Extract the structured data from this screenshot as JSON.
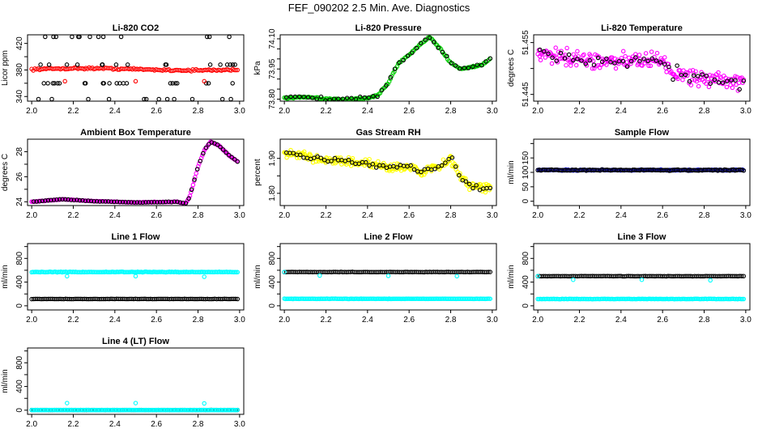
{
  "figure": {
    "title": "FEF_090202  2.5 Min. Ave. Diagnostics"
  },
  "chart_data": [
    {
      "type": "scatter",
      "title": "Li-820 CO2",
      "ylabel": "Licor ppm",
      "xlim": [
        1.98,
        3.02
      ],
      "ylim": [
        333,
        433
      ],
      "x_ticks": [
        "2.0",
        "2.2",
        "2.4",
        "2.6",
        "2.8",
        "3.0"
      ],
      "y_ticks": [
        340,
        360,
        380,
        400,
        420
      ],
      "y_tick_labels": [
        "340",
        "",
        "380",
        "",
        "420"
      ],
      "series": [
        {
          "name": "CO2 (red)",
          "color": "#ff0000",
          "pattern": "band",
          "x0": 2.0,
          "x1": 2.99,
          "level": 381,
          "drift": 1.5,
          "noise": 2,
          "count": 130
        },
        {
          "name": "CO2 discrete levels (black)",
          "color": "#000000",
          "pattern": "levels",
          "x0": 2.03,
          "x1": 2.99,
          "levels": [
            336,
            360,
            388,
            430
          ],
          "count": 64
        },
        {
          "name": "CO2 low outliers (red)",
          "color": "#ff0000",
          "pattern": "points",
          "x": [
            2.16,
            2.5,
            2.83
          ],
          "y": [
            363,
            363,
            363
          ]
        }
      ]
    },
    {
      "type": "scatter",
      "title": "Li-820 Pressure",
      "ylabel": "kPa",
      "xlim": [
        1.98,
        3.02
      ],
      "ylim": [
        73.79,
        74.12
      ],
      "x_ticks": [
        "2.0",
        "2.2",
        "2.4",
        "2.6",
        "2.8",
        "3.0"
      ],
      "y_ticks": [
        73.8,
        73.95,
        74.1
      ],
      "y_tick_labels": [
        "73.80",
        "73.95",
        "74.10"
      ],
      "y_minor_ticks": [
        73.85,
        73.9,
        74.0,
        74.05
      ],
      "series": [
        {
          "name": "Pressure (green)",
          "color": "#00cc00",
          "pattern": "curve",
          "x0": 2.0,
          "x1": 2.99,
          "noise": 0.006,
          "count": 160,
          "kx": [
            2.0,
            2.1,
            2.2,
            2.3,
            2.4,
            2.45,
            2.5,
            2.55,
            2.6,
            2.65,
            2.7,
            2.75,
            2.8,
            2.85,
            2.9,
            2.95,
            3.0
          ],
          "ky": [
            73.805,
            73.81,
            73.8,
            73.8,
            73.805,
            73.82,
            73.88,
            73.98,
            74.02,
            74.07,
            74.11,
            74.05,
            73.98,
            73.95,
            73.96,
            73.97,
            74.01
          ]
        },
        {
          "name": "Pressure (black)",
          "color": "#000000",
          "pattern": "curve",
          "x0": 2.01,
          "x1": 2.99,
          "noise": 0.01,
          "count": 48,
          "kx": [
            2.0,
            2.1,
            2.2,
            2.3,
            2.4,
            2.45,
            2.5,
            2.55,
            2.6,
            2.65,
            2.7,
            2.75,
            2.8,
            2.85,
            2.9,
            2.95,
            3.0
          ],
          "ky": [
            73.805,
            73.81,
            73.8,
            73.8,
            73.805,
            73.82,
            73.88,
            73.98,
            74.02,
            74.07,
            74.11,
            74.05,
            73.98,
            73.95,
            73.96,
            73.97,
            74.01
          ]
        }
      ]
    },
    {
      "type": "scatter",
      "title": "Li-820 Temperature",
      "ylabel": "degrees C",
      "xlim": [
        1.98,
        3.02
      ],
      "ylim": [
        51.4437,
        51.4565
      ],
      "x_ticks": [
        "2.0",
        "2.2",
        "2.4",
        "2.6",
        "2.8",
        "3.0"
      ],
      "y_ticks": [
        51.445,
        51.45,
        51.455
      ],
      "y_tick_labels": [
        "51.445",
        "",
        "51.455"
      ],
      "series": [
        {
          "name": "Temperature (magenta)",
          "color": "#ff00ff",
          "pattern": "curve",
          "x0": 2.0,
          "x1": 2.99,
          "noise": 0.0022,
          "count": 220,
          "kx": [
            2.0,
            2.3,
            2.6,
            2.65,
            3.0
          ],
          "ky": [
            51.4525,
            51.4515,
            51.4515,
            51.449,
            51.447
          ]
        },
        {
          "name": "Temperature (black)",
          "color": "#000000",
          "pattern": "curve",
          "x0": 2.01,
          "x1": 2.99,
          "noise": 0.0018,
          "count": 50,
          "kx": [
            2.0,
            2.3,
            2.6,
            2.65,
            3.0
          ],
          "ky": [
            51.4525,
            51.4515,
            51.4515,
            51.449,
            51.447
          ]
        }
      ]
    },
    {
      "type": "scatter",
      "title": "Ambient Box Temperature",
      "ylabel": "degrees C",
      "xlim": [
        1.98,
        3.02
      ],
      "ylim": [
        23.7,
        29.0
      ],
      "x_ticks": [
        "2.0",
        "2.2",
        "2.4",
        "2.6",
        "2.8",
        "3.0"
      ],
      "y_ticks": [
        24,
        26,
        28
      ],
      "y_tick_labels": [
        "24",
        "26",
        "28"
      ],
      "y_minor_ticks": [
        25,
        27
      ],
      "series": [
        {
          "name": "Box temp (magenta)",
          "color": "#ff00ff",
          "pattern": "curve",
          "x0": 2.0,
          "x1": 2.99,
          "noise": 0.03,
          "count": 200,
          "kx": [
            2.0,
            2.15,
            2.3,
            2.5,
            2.7,
            2.74,
            2.76,
            2.78,
            2.8,
            2.83,
            2.86,
            2.9,
            2.95,
            3.0
          ],
          "ky": [
            24.0,
            24.2,
            24.05,
            23.95,
            24.0,
            23.85,
            24.4,
            25.6,
            26.8,
            28.1,
            28.8,
            28.5,
            27.7,
            27.1
          ]
        },
        {
          "name": "Box temp (black)",
          "color": "#000000",
          "pattern": "curve",
          "x0": 2.01,
          "x1": 2.99,
          "noise": 0.03,
          "count": 72,
          "kx": [
            2.0,
            2.15,
            2.3,
            2.5,
            2.7,
            2.74,
            2.76,
            2.78,
            2.8,
            2.83,
            2.86,
            2.9,
            2.95,
            3.0
          ],
          "ky": [
            24.0,
            24.2,
            24.05,
            23.95,
            24.0,
            23.85,
            24.4,
            25.6,
            26.8,
            28.1,
            28.8,
            28.5,
            27.7,
            27.1
          ]
        }
      ]
    },
    {
      "type": "scatter",
      "title": "Gas Stream RH",
      "ylabel": "percent",
      "xlim": [
        1.98,
        3.02
      ],
      "ylim": [
        1.765,
        1.955
      ],
      "x_ticks": [
        "2.0",
        "2.2",
        "2.4",
        "2.6",
        "2.8",
        "3.0"
      ],
      "y_ticks": [
        1.8,
        1.9
      ],
      "y_tick_labels": [
        "1.80",
        "1.90"
      ],
      "y_minor_ticks": [
        1.85
      ],
      "series": [
        {
          "name": "RH (yellow)",
          "color": "#ffff00",
          "pattern": "curve",
          "x0": 2.0,
          "x1": 2.99,
          "noise": 0.018,
          "count": 260,
          "kx": [
            2.0,
            2.1,
            2.3,
            2.5,
            2.6,
            2.65,
            2.7,
            2.75,
            2.8,
            2.85,
            2.9,
            3.0
          ],
          "ky": [
            1.915,
            1.905,
            1.89,
            1.875,
            1.875,
            1.86,
            1.87,
            1.875,
            1.9,
            1.845,
            1.82,
            1.815
          ]
        },
        {
          "name": "RH (black)",
          "color": "#000000",
          "pattern": "curve",
          "x0": 2.01,
          "x1": 2.99,
          "noise": 0.012,
          "count": 60,
          "kx": [
            2.0,
            2.1,
            2.3,
            2.5,
            2.6,
            2.65,
            2.7,
            2.75,
            2.8,
            2.85,
            2.9,
            3.0
          ],
          "ky": [
            1.915,
            1.905,
            1.89,
            1.875,
            1.875,
            1.86,
            1.87,
            1.875,
            1.9,
            1.845,
            1.82,
            1.815
          ]
        }
      ]
    },
    {
      "type": "scatter",
      "title": "Sample Flow",
      "ylabel": "ml/min",
      "xlim": [
        1.98,
        3.02
      ],
      "ylim": [
        -15,
        215
      ],
      "x_ticks": [
        "2.0",
        "2.2",
        "2.4",
        "2.6",
        "2.8",
        "3.0"
      ],
      "y_ticks": [
        0,
        50,
        100,
        150
      ],
      "y_tick_labels": [
        "0",
        "50",
        "100",
        "150"
      ],
      "y_minor_ticks": [
        200
      ],
      "series": [
        {
          "name": "Sample flow (blue)",
          "color": "#0000cc",
          "pattern": "band",
          "x0": 2.0,
          "x1": 2.99,
          "level": 108,
          "drift": 0,
          "noise": 2.5,
          "count": 170
        },
        {
          "name": "Sample flow (black)",
          "color": "#000000",
          "pattern": "band",
          "x0": 2.0,
          "x1": 2.99,
          "level": 108,
          "drift": 0,
          "noise": 3,
          "count": 120
        }
      ]
    },
    {
      "type": "scatter",
      "title": "Line 1 Flow",
      "ylabel": "ml/min",
      "xlim": [
        1.98,
        3.02
      ],
      "ylim": [
        -70,
        1050
      ],
      "x_ticks": [
        "2.0",
        "2.2",
        "2.4",
        "2.6",
        "2.8",
        "3.0"
      ],
      "y_ticks": [
        0,
        400,
        800
      ],
      "y_tick_labels": [
        "0",
        "400",
        "800"
      ],
      "y_minor_ticks": [
        200,
        600,
        1000
      ],
      "series": [
        {
          "name": "Line 1 (cyan)",
          "color": "#00ffff",
          "pattern": "band",
          "x0": 2.0,
          "x1": 2.99,
          "level": 570,
          "drift": 0,
          "noise": 8,
          "count": 170
        },
        {
          "name": "Line 1 (black)",
          "color": "#000000",
          "pattern": "band",
          "x0": 2.0,
          "x1": 2.99,
          "level": 115,
          "drift": 0,
          "noise": 3,
          "count": 110
        },
        {
          "name": "Line 1 dips (cyan)",
          "color": "#00ffff",
          "pattern": "points",
          "x": [
            2.17,
            2.5,
            2.83
          ],
          "y": [
            500,
            500,
            490
          ]
        }
      ]
    },
    {
      "type": "scatter",
      "title": "Line 2 Flow",
      "ylabel": "ml/min",
      "xlim": [
        1.98,
        3.02
      ],
      "ylim": [
        -70,
        1050
      ],
      "x_ticks": [
        "2.0",
        "2.2",
        "2.4",
        "2.6",
        "2.8",
        "3.0"
      ],
      "y_ticks": [
        0,
        400,
        800
      ],
      "y_tick_labels": [
        "0",
        "400",
        "800"
      ],
      "y_minor_ticks": [
        200,
        600,
        1000
      ],
      "series": [
        {
          "name": "Line 2 (cyan)",
          "color": "#00ffff",
          "pattern": "band",
          "x0": 2.0,
          "x1": 2.99,
          "level": 118,
          "drift": 0,
          "noise": 4,
          "count": 170
        },
        {
          "name": "Line 2 (black)",
          "color": "#000000",
          "pattern": "band",
          "x0": 2.0,
          "x1": 2.99,
          "level": 570,
          "drift": 0,
          "noise": 4,
          "count": 110
        },
        {
          "name": "Line 2 dips (cyan)",
          "color": "#00ffff",
          "pattern": "points",
          "x": [
            2.0,
            2.17,
            2.5,
            2.83
          ],
          "y": [
            570,
            510,
            505,
            500
          ]
        }
      ]
    },
    {
      "type": "scatter",
      "title": "Line 3 Flow",
      "ylabel": "ml/min",
      "xlim": [
        1.98,
        3.02
      ],
      "ylim": [
        -70,
        1050
      ],
      "x_ticks": [
        "2.0",
        "2.2",
        "2.4",
        "2.6",
        "2.8",
        "3.0"
      ],
      "y_ticks": [
        0,
        400,
        800
      ],
      "y_tick_labels": [
        "0",
        "400",
        "800"
      ],
      "y_minor_ticks": [
        200,
        600,
        1000
      ],
      "series": [
        {
          "name": "Line 3 (cyan)",
          "color": "#00ffff",
          "pattern": "band",
          "x0": 2.0,
          "x1": 2.99,
          "level": 115,
          "drift": 0,
          "noise": 4,
          "count": 170
        },
        {
          "name": "Line 3 (black)",
          "color": "#000000",
          "pattern": "band",
          "x0": 2.0,
          "x1": 2.99,
          "level": 500,
          "drift": 0,
          "noise": 4,
          "count": 110
        },
        {
          "name": "Line 3 dips (cyan)",
          "color": "#00ffff",
          "pattern": "points",
          "x": [
            2.0,
            2.17,
            2.5,
            2.83
          ],
          "y": [
            500,
            440,
            440,
            430
          ]
        }
      ]
    },
    {
      "type": "scatter",
      "title": "Line 4 (LT) Flow",
      "ylabel": "ml/min",
      "xlim": [
        1.98,
        3.02
      ],
      "ylim": [
        -70,
        1050
      ],
      "x_ticks": [
        "2.0",
        "2.2",
        "2.4",
        "2.6",
        "2.8",
        "3.0"
      ],
      "y_ticks": [
        0,
        400,
        800
      ],
      "y_tick_labels": [
        "0",
        "400",
        "800"
      ],
      "y_minor_ticks": [
        200,
        600,
        1000
      ],
      "series": [
        {
          "name": "Line 4 (black)",
          "color": "#000000",
          "pattern": "band",
          "x0": 2.0,
          "x1": 2.99,
          "level": 3,
          "drift": 0,
          "noise": 2,
          "count": 110
        },
        {
          "name": "Line 4 (cyan)",
          "color": "#00ffff",
          "pattern": "band",
          "x0": 2.0,
          "x1": 2.99,
          "level": 3,
          "drift": 0,
          "noise": 2,
          "count": 170
        },
        {
          "name": "Line 4 spikes (cyan)",
          "color": "#00ffff",
          "pattern": "points",
          "x": [
            2.17,
            2.5,
            2.83
          ],
          "y": [
            120,
            120,
            115
          ]
        }
      ]
    }
  ]
}
